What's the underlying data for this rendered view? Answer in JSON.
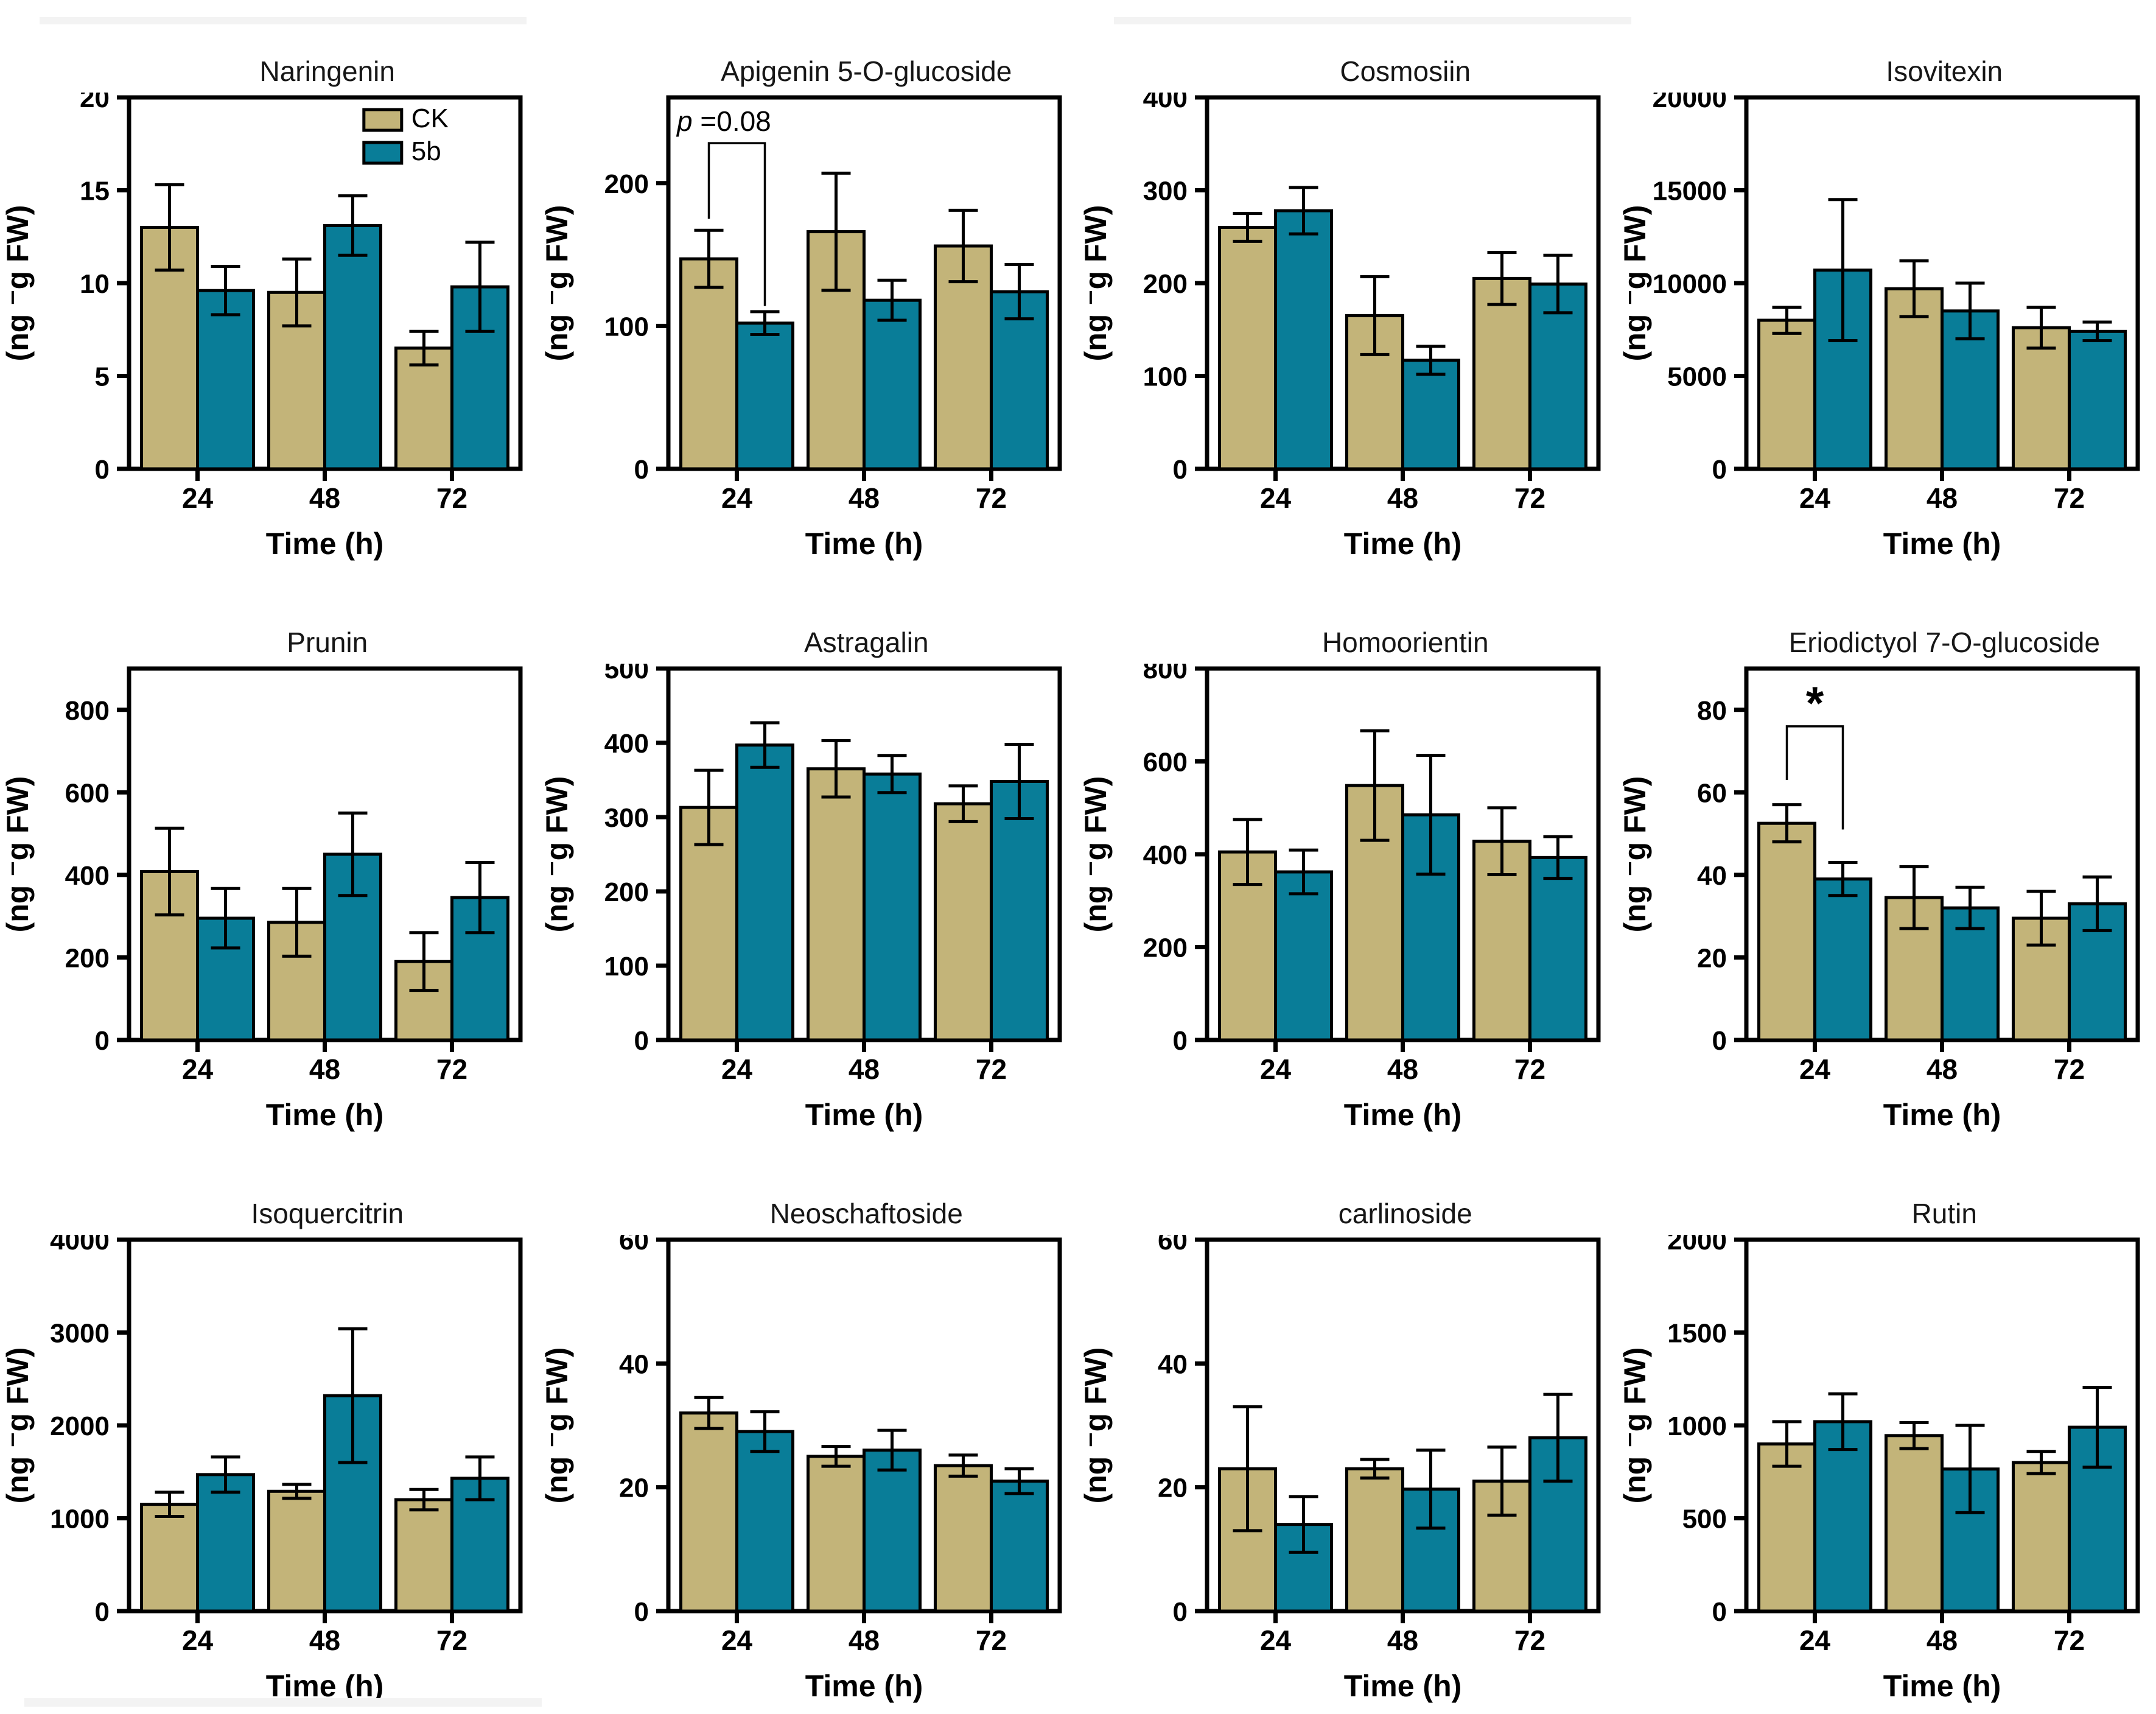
{
  "figure": {
    "xlabel": "Time (h)",
    "ylabel": "(ng ⁻g FW)",
    "categories": [
      "24",
      "48",
      "72"
    ],
    "legend": [
      {
        "name": "CK",
        "color": "#C3B479"
      },
      {
        "name": "5b",
        "color": "#097D98"
      }
    ],
    "bar_edge_color": "#000000",
    "background_color": "#ffffff"
  },
  "chart_data": [
    {
      "type": "bar",
      "title": "Naringenin",
      "ylim": [
        0,
        20
      ],
      "yticks": [
        0,
        5,
        10,
        15,
        20
      ],
      "legend_inside": true,
      "series": [
        {
          "name": "CK",
          "values": [
            13.0,
            9.5,
            6.5
          ],
          "errors": [
            2.3,
            1.8,
            0.9
          ]
        },
        {
          "name": "5b",
          "values": [
            9.6,
            13.1,
            9.8
          ],
          "errors": [
            1.3,
            1.6,
            2.4
          ]
        }
      ]
    },
    {
      "type": "bar",
      "title": "Apigenin 5-O-glucoside",
      "ylim": [
        0,
        260
      ],
      "yticks": [
        0,
        100,
        200
      ],
      "annotation": {
        "style": "bracket",
        "text": "p =0.08",
        "italic_first": true,
        "group": 0,
        "y_top": 228,
        "y_left": 175,
        "y_right": 114
      },
      "series": [
        {
          "name": "CK",
          "values": [
            147,
            166,
            156
          ],
          "errors": [
            20,
            41,
            25
          ]
        },
        {
          "name": "5b",
          "values": [
            102,
            118,
            124
          ],
          "errors": [
            8,
            14,
            19
          ]
        }
      ]
    },
    {
      "type": "bar",
      "title": "Cosmosiin",
      "ylim": [
        0,
        400
      ],
      "yticks": [
        0,
        100,
        200,
        300,
        400
      ],
      "series": [
        {
          "name": "CK",
          "values": [
            260,
            165,
            205
          ],
          "errors": [
            15,
            42,
            28
          ]
        },
        {
          "name": "5b",
          "values": [
            278,
            117,
            199
          ],
          "errors": [
            25,
            15,
            31
          ]
        }
      ]
    },
    {
      "type": "bar",
      "title": "Isovitexin",
      "ylim": [
        0,
        20000
      ],
      "yticks": [
        0,
        5000,
        10000,
        15000,
        20000
      ],
      "series": [
        {
          "name": "CK",
          "values": [
            8000,
            9700,
            7600
          ],
          "errors": [
            700,
            1500,
            1100
          ]
        },
        {
          "name": "5b",
          "values": [
            10700,
            8500,
            7400
          ],
          "errors": [
            3800,
            1500,
            500
          ]
        }
      ]
    },
    {
      "type": "bar",
      "title": "Prunin",
      "ylim": [
        0,
        900
      ],
      "yticks": [
        0,
        200,
        400,
        600,
        800
      ],
      "series": [
        {
          "name": "CK",
          "values": [
            408,
            285,
            190
          ],
          "errors": [
            105,
            82,
            70
          ]
        },
        {
          "name": "5b",
          "values": [
            295,
            450,
            345
          ],
          "errors": [
            72,
            100,
            85
          ]
        }
      ]
    },
    {
      "type": "bar",
      "title": "Astragalin",
      "ylim": [
        0,
        500
      ],
      "yticks": [
        0,
        100,
        200,
        300,
        400,
        500
      ],
      "series": [
        {
          "name": "CK",
          "values": [
            313,
            365,
            318
          ],
          "errors": [
            50,
            38,
            24
          ]
        },
        {
          "name": "5b",
          "values": [
            397,
            358,
            348
          ],
          "errors": [
            30,
            25,
            50
          ]
        }
      ]
    },
    {
      "type": "bar",
      "title": "Homoorientin",
      "ylim": [
        0,
        800
      ],
      "yticks": [
        0,
        200,
        400,
        600,
        800
      ],
      "series": [
        {
          "name": "CK",
          "values": [
            405,
            548,
            428
          ],
          "errors": [
            70,
            118,
            72
          ]
        },
        {
          "name": "5b",
          "values": [
            362,
            485,
            393
          ],
          "errors": [
            47,
            128,
            45
          ]
        }
      ]
    },
    {
      "type": "bar",
      "title": "Eriodictyol 7-O-glucoside",
      "ylim": [
        0,
        90
      ],
      "yticks": [
        0,
        20,
        40,
        60,
        80
      ],
      "annotation": {
        "style": "bracket",
        "text": "*",
        "italic_first": false,
        "group": 0,
        "y_top": 76,
        "y_left": 63,
        "y_right": 51
      },
      "series": [
        {
          "name": "CK",
          "values": [
            52.5,
            34.5,
            29.5
          ],
          "errors": [
            4.5,
            7.5,
            6.5
          ]
        },
        {
          "name": "5b",
          "values": [
            39,
            32,
            33
          ],
          "errors": [
            4,
            5,
            6.5
          ]
        }
      ]
    },
    {
      "type": "bar",
      "title": "Isoquercitrin",
      "ylim": [
        0,
        4000
      ],
      "yticks": [
        0,
        1000,
        2000,
        3000,
        4000
      ],
      "series": [
        {
          "name": "CK",
          "values": [
            1150,
            1290,
            1200
          ],
          "errors": [
            130,
            75,
            110
          ]
        },
        {
          "name": "5b",
          "values": [
            1470,
            2320,
            1430
          ],
          "errors": [
            190,
            720,
            230
          ]
        }
      ]
    },
    {
      "type": "bar",
      "title": "Neoschaftoside",
      "ylim": [
        0,
        60
      ],
      "yticks": [
        0,
        20,
        40,
        60
      ],
      "series": [
        {
          "name": "CK",
          "values": [
            32,
            25,
            23.5
          ],
          "errors": [
            2.5,
            1.6,
            1.7
          ]
        },
        {
          "name": "5b",
          "values": [
            29,
            26,
            21
          ],
          "errors": [
            3.2,
            3.2,
            2
          ]
        }
      ]
    },
    {
      "type": "bar",
      "title": "carlinoside",
      "ylim": [
        0,
        60
      ],
      "yticks": [
        0,
        20,
        40,
        60
      ],
      "series": [
        {
          "name": "CK",
          "values": [
            23,
            23,
            21
          ],
          "errors": [
            10,
            1.5,
            5.5
          ]
        },
        {
          "name": "5b",
          "values": [
            14,
            19.7,
            28
          ],
          "errors": [
            4.5,
            6.3,
            7
          ]
        }
      ]
    },
    {
      "type": "bar",
      "title": "Rutin",
      "ylim": [
        0,
        2000
      ],
      "yticks": [
        0,
        500,
        1000,
        1500,
        2000
      ],
      "series": [
        {
          "name": "CK",
          "values": [
            900,
            945,
            800
          ],
          "errors": [
            120,
            70,
            60
          ]
        },
        {
          "name": "5b",
          "values": [
            1020,
            765,
            990
          ],
          "errors": [
            150,
            235,
            215
          ]
        }
      ]
    }
  ]
}
